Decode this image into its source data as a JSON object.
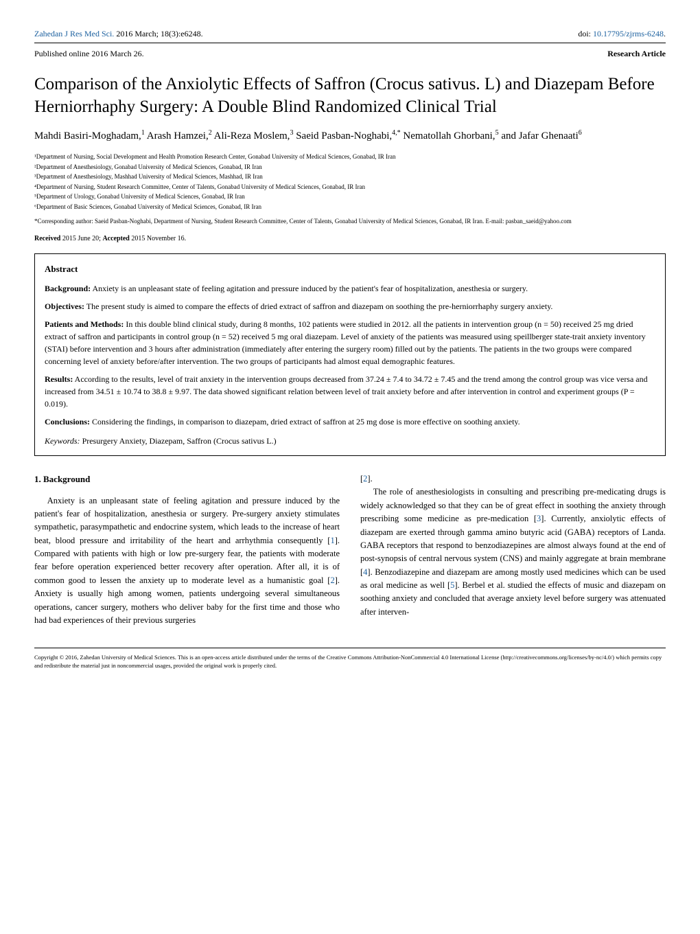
{
  "header": {
    "journal": "Zahedan J Res Med Sci.",
    "citation": " 2016 March; 18(3):e6248.",
    "doi_label": "doi: ",
    "doi": "10.17795/zjrms-6248",
    "doi_suffix": ".",
    "published": "Published online 2016 March 26.",
    "article_type": "Research Article"
  },
  "title": "Comparison of the Anxiolytic Effects of Saffron (Crocus sativus. L) and Diazepam Before Herniorrhaphy Surgery: A Double Blind Randomized Clinical Trial",
  "authors": {
    "line1": "Mahdi Basiri-Moghadam,",
    "sup1": "1",
    "name2": " Arash Hamzei,",
    "sup2": "2",
    "name3": " Ali-Reza Moslem,",
    "sup3": "3",
    "name4": " Saeid Pasban-Noghabi,",
    "sup4": "4,*",
    "name5": " Nematollah Ghorbani,",
    "sup5": "5",
    "name6": " and Jafar Ghenaati",
    "sup6": "6"
  },
  "affiliations": {
    "a1": "¹Department of Nursing, Social Development and Health Promotion Research Center, Gonabad University of Medical Sciences, Gonabad, IR Iran",
    "a2": "²Department of Anesthesiology, Gonabad University of Medical Sciences, Gonabad, IR Iran",
    "a3": "³Department of Anesthesiology, Mashhad University of Medical Sciences, Mashhad, IR Iran",
    "a4": "⁴Department of Nursing, Student Research Committee, Center of Talents, Gonabad University of Medical Sciences, Gonabad, IR Iran",
    "a5": "⁵Department of Urology, Gonabad University of Medical Sciences, Gonabad, IR Iran",
    "a6": "⁶Department of Basic Sciences, Gonabad University of Medical Sciences, Gonabad, IR Iran"
  },
  "corresponding": "*Corresponding author: Saeid Pasban-Noghabi, Department of Nursing, Student Research Committee, Center of Talents, Gonabad University of Medical Sciences, Gonabad, IR Iran. E-mail: pasban_saeid@yahoo.com",
  "dates": {
    "received_label": "Received",
    "received": " 2015 June 20; ",
    "accepted_label": "Accepted",
    "accepted": " 2015 November 16."
  },
  "abstract": {
    "heading": "Abstract",
    "background_label": "Background:",
    "background": " Anxiety is an unpleasant state of feeling agitation and pressure induced by the patient's fear of hospitalization, anesthesia or surgery.",
    "objectives_label": "Objectives:",
    "objectives": " The present study is aimed to compare the effects of dried extract of saffron and diazepam on soothing the pre-herniorrhaphy surgery anxiety.",
    "methods_label": "Patients and Methods:",
    "methods": " In this double blind clinical study, during 8 months, 102 patients were studied in 2012. all the patients in intervention group (n = 50) received 25 mg dried extract of saffron and participants in control group (n = 52) received 5 mg oral diazepam. Level of anxiety of the patients was measured using speillberger state-trait anxiety inventory (STAI) before intervention and 3 hours after administration (immediately after entering the surgery room) filled out by the patients. The patients in the two groups were compared concerning level of anxiety before/after intervention. The two groups of participants had almost equal demographic features.",
    "results_label": "Results:",
    "results": " According to the results, level of trait anxiety in the intervention groups decreased from 37.24 ± 7.4 to 34.72 ± 7.45 and the trend among the control group was vice versa and increased from 34.51 ± 10.74 to 38.8 ± 9.97. The data showed significant relation between level of trait anxiety before and after intervention in control and experiment groups (P = 0.019).",
    "conclusions_label": "Conclusions:",
    "conclusions": " Considering the findings, in comparison to diazepam, dried extract of saffron at 25 mg dose is more effective on soothing anxiety.",
    "keywords_label": "Keywords:",
    "keywords": " Presurgery Anxiety, Diazepam, Saffron (Crocus sativus L.)"
  },
  "section1": {
    "heading": "1. Background",
    "col1_p1_a": "Anxiety is an unpleasant state of feeling agitation and pressure induced by the patient's fear of hospitalization, anesthesia or surgery. Pre-surgery anxiety stimulates sympathetic, parasympathetic and endocrine system, which leads to the increase of heart beat, blood pressure and irritability of the heart and arrhythmia consequently [",
    "ref1": "1",
    "col1_p1_b": "]. Compared with patients with high or low pre-surgery fear, the patients with moderate fear before operation experienced better recovery after operation. After all, it is of common good to lessen the anxiety up to moderate level as a humanistic goal [",
    "ref2a": "2",
    "col1_p1_c": "]. Anxiety is usually high among women, patients undergoing several simultaneous operations, cancer surgery, mothers who deliver baby for the first time and those who had bad experiences of their previous surgeries",
    "col2_p1_a": "[",
    "ref2b": "2",
    "col2_p1_b": "].",
    "col2_p2_a": "The role of anesthesiologists in consulting and prescribing pre-medicating drugs is widely acknowledged so that they can be of great effect in soothing the anxiety through prescribing some medicine as pre-medication [",
    "ref3": "3",
    "col2_p2_b": "]. Currently, anxiolytic effects of diazepam are exerted through gamma amino butyric acid (GABA) receptors of Landa. GABA receptors that respond to benzodiazepines are almost always found at the end of post-synopsis of central nervous system (CNS) and mainly aggregate at brain membrane [",
    "ref4": "4",
    "col2_p2_c": "]. Benzodiazepine and diazepam are among mostly used medicines which can be used as oral medicine as well [",
    "ref5": "5",
    "col2_p2_d": "]. Berbel et al. studied the effects of music and diazepam on soothing anxiety and concluded that average anxiety level before surgery was attenuated after interven-"
  },
  "copyright": "Copyright © 2016, Zahedan University of Medical Sciences. This is an open-access article distributed under the terms of the Creative Commons Attribution-NonCommercial 4.0 International License (http://creativecommons.org/licenses/by-nc/4.0/) which permits copy and redistribute the material just in noncommercial usages, provided the original work is properly cited."
}
